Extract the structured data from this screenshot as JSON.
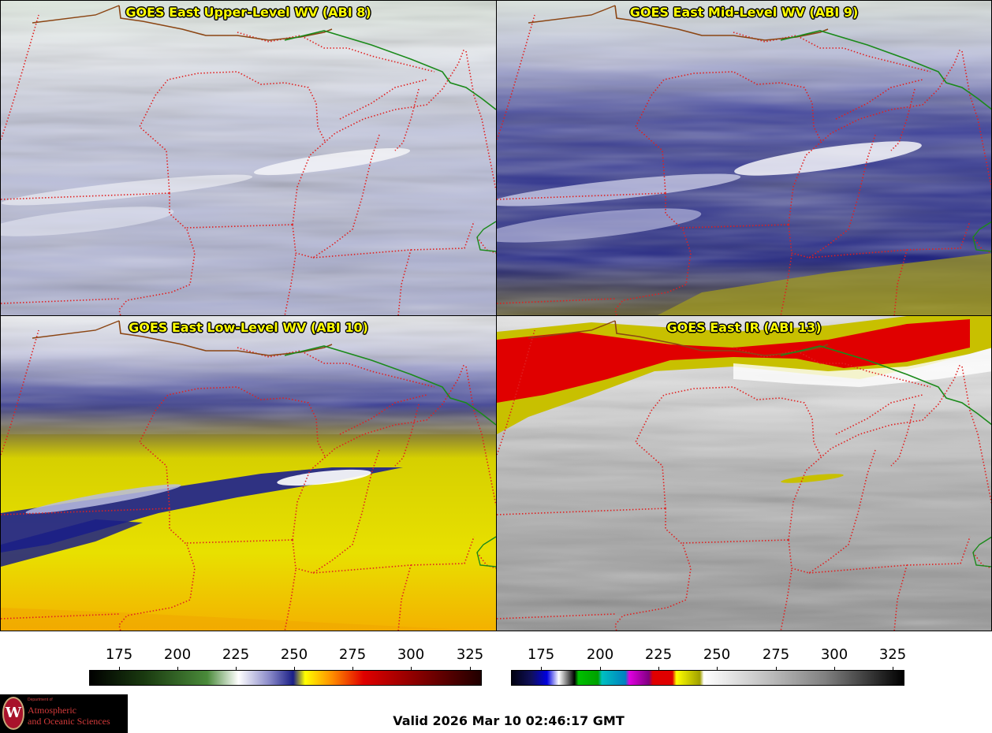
{
  "panels": [
    {
      "id": "upper",
      "title": "GOES East Upper-Level WV (ABI 8)"
    },
    {
      "id": "mid",
      "title": "GOES East Mid-Level WV (ABI 9)"
    },
    {
      "id": "low",
      "title": "GOES East Low-Level WV (ABI 10)"
    },
    {
      "id": "ir",
      "title": "GOES East IR (ABI 13)"
    }
  ],
  "colorbars": {
    "wv": {
      "ticks": [
        "175",
        "200",
        "225",
        "250",
        "275",
        "300",
        "325"
      ]
    },
    "ir": {
      "ticks": [
        "175",
        "200",
        "225",
        "250",
        "275",
        "300",
        "325"
      ]
    }
  },
  "valid_time": "Valid 2026 Mar 10 02:46:17 GMT",
  "logo": {
    "dept": "Department of",
    "line1": "Atmospheric",
    "line2": "and Oceanic Sciences",
    "seal": "W"
  },
  "colors": {
    "state_borders": "#e02020",
    "intl_border": "#1a8a1a",
    "coast": "#8b4513",
    "wv_high": "#ffff00",
    "wv_moist": "#000080",
    "ir_cold": "#e00000"
  }
}
